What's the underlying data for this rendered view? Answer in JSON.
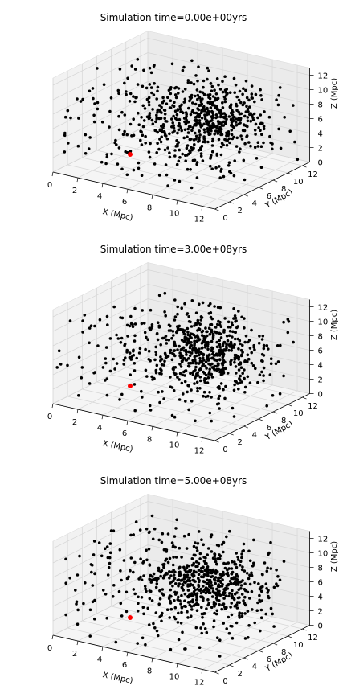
{
  "chart_data": [
    {
      "type": "scatter",
      "projection": "3d",
      "title": "Simulation time=0.00e+00yrs",
      "xlabel": "X (Mpc)",
      "ylabel": "Y (Mpc)",
      "zlabel": "Z (Mpc)",
      "xlim": [
        0,
        13
      ],
      "ylim": [
        0,
        13
      ],
      "zlim": [
        0,
        13
      ],
      "xticks": [
        "0",
        "2",
        "4",
        "6",
        "8",
        "10",
        "12"
      ],
      "yticks": [
        "0",
        "2",
        "4",
        "6",
        "8",
        "10",
        "12"
      ],
      "zticks": [
        "0",
        "2",
        "4",
        "6",
        "8",
        "10",
        "12"
      ],
      "grid": true,
      "series": [
        {
          "color": "#000000",
          "marker": "circle",
          "count": 700,
          "description_center": [
            8,
            8,
            6
          ]
        },
        {
          "color": "#ff0000",
          "marker": "circle",
          "points": [
            [
              4.2,
              3.4,
              2.4
            ]
          ]
        }
      ]
    },
    {
      "type": "scatter",
      "projection": "3d",
      "title": "Simulation time=3.00e+08yrs",
      "xlabel": "X (Mpc)",
      "ylabel": "Y (Mpc)",
      "zlabel": "Z (Mpc)",
      "xlim": [
        0,
        13
      ],
      "ylim": [
        0,
        13
      ],
      "zlim": [
        0,
        13
      ],
      "xticks": [
        "0",
        "2",
        "4",
        "6",
        "8",
        "10",
        "12"
      ],
      "yticks": [
        "0",
        "2",
        "4",
        "6",
        "8",
        "10",
        "12"
      ],
      "zticks": [
        "0",
        "2",
        "4",
        "6",
        "8",
        "10",
        "12"
      ],
      "grid": true,
      "series": [
        {
          "color": "#000000",
          "marker": "circle",
          "count": 700,
          "description_center": [
            8,
            8,
            6
          ]
        },
        {
          "color": "#ff0000",
          "marker": "circle",
          "points": [
            [
              4.2,
              3.4,
              2.4
            ]
          ]
        }
      ]
    },
    {
      "type": "scatter",
      "projection": "3d",
      "title": "Simulation time=5.00e+08yrs",
      "xlabel": "X (Mpc)",
      "ylabel": "Y (Mpc)",
      "zlabel": "Z (Mpc)",
      "xlim": [
        0,
        13
      ],
      "ylim": [
        0,
        13
      ],
      "zlim": [
        0,
        13
      ],
      "xticks": [
        "0",
        "2",
        "4",
        "6",
        "8",
        "10",
        "12"
      ],
      "yticks": [
        "0",
        "2",
        "4",
        "6",
        "8",
        "10",
        "12"
      ],
      "zticks": [
        "0",
        "2",
        "4",
        "6",
        "8",
        "10",
        "12"
      ],
      "grid": true,
      "series": [
        {
          "color": "#000000",
          "marker": "circle",
          "count": 700,
          "description_center": [
            8,
            8,
            6
          ]
        },
        {
          "color": "#ff0000",
          "marker": "circle",
          "points": [
            [
              4.2,
              3.4,
              2.4
            ]
          ]
        }
      ]
    }
  ]
}
